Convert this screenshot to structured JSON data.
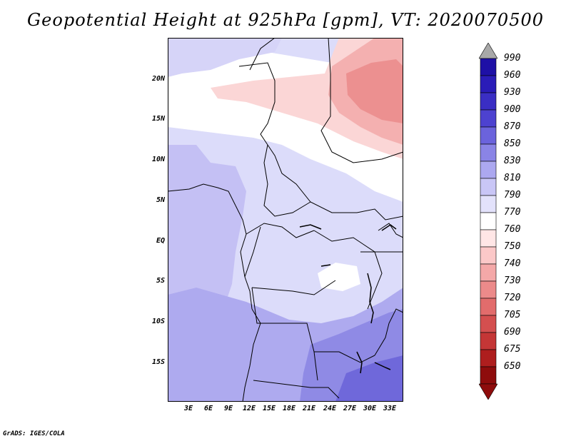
{
  "title": "Geopotential Height at 925hPa [gpm], VT: 2020070500",
  "footer": "GrADS: IGES/COLA",
  "map": {
    "lat_labels": [
      "20N",
      "15N",
      "10N",
      "5N",
      "EQ",
      "5S",
      "10S",
      "15S"
    ],
    "lon_labels": [
      "3E",
      "6E",
      "9E",
      "12E",
      "15E",
      "18E",
      "21E",
      "24E",
      "27E",
      "30E",
      "33E"
    ]
  },
  "colorbar": {
    "levels": [
      "990",
      "960",
      "930",
      "900",
      "870",
      "850",
      "830",
      "810",
      "790",
      "770",
      "760",
      "750",
      "740",
      "730",
      "720",
      "705",
      "690",
      "675",
      "650"
    ],
    "colors": [
      "#1e10a6",
      "#2a1cb8",
      "#3a2ec4",
      "#4d42d0",
      "#6b63dc",
      "#8a84e6",
      "#aca8f0",
      "#c9c6f6",
      "#e3e2fb",
      "#ffffff",
      "#ffe6e6",
      "#fbc8c8",
      "#f4a8a8",
      "#ec8a8a",
      "#e26c6c",
      "#d44f4f",
      "#c43636",
      "#ae1e1e",
      "#8e0c0c"
    ]
  }
}
